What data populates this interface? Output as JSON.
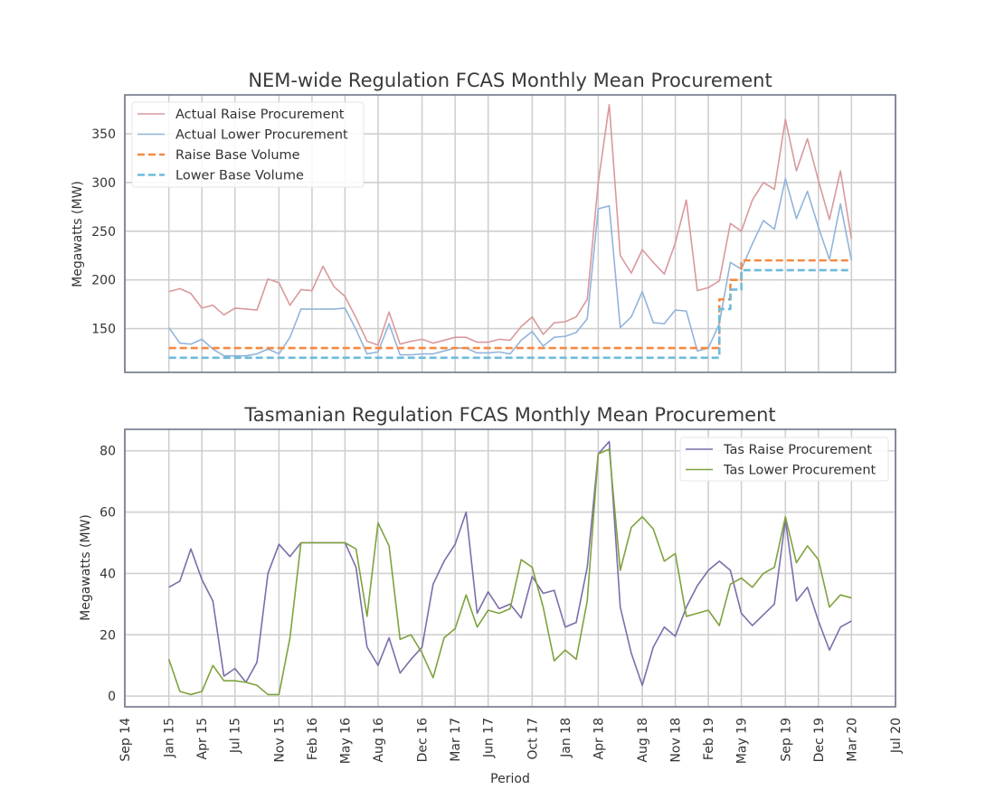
{
  "xlabel": "Period",
  "x_ticks": [
    "Sep 14",
    "Jan 15",
    "Apr 15",
    "Jul 15",
    "Nov 15",
    "Feb 16",
    "May 16",
    "Aug 16",
    "Dec 16",
    "Mar 17",
    "Jun 17",
    "Oct 17",
    "Jan 18",
    "Apr 18",
    "Aug 18",
    "Nov 18",
    "Feb 19",
    "May 19",
    "Sep 19",
    "Dec 19",
    "Mar 20",
    "Jul 20"
  ],
  "colors": {
    "raise": "#d9999c",
    "lower": "#92b4db",
    "raise_base": "#f58a42",
    "lower_base": "#6dbbdc",
    "tas_raise": "#7b6eab",
    "tas_lower": "#7fa23e"
  },
  "chart_data": [
    {
      "type": "line",
      "title": "NEM-wide Regulation FCAS Monthly Mean Procurement",
      "ylabel": "Megawatts (MW)",
      "y_ticks": [
        150,
        200,
        250,
        300,
        350
      ],
      "ylim": [
        105,
        390
      ],
      "xlim": [
        "2014-09",
        "2020-07"
      ],
      "grid": true,
      "legend_position": "top-left",
      "x": [
        "2015-01",
        "2015-02",
        "2015-03",
        "2015-04",
        "2015-05",
        "2015-06",
        "2015-07",
        "2015-08",
        "2015-09",
        "2015-10",
        "2015-11",
        "2015-12",
        "2016-01",
        "2016-02",
        "2016-03",
        "2016-04",
        "2016-05",
        "2016-06",
        "2016-07",
        "2016-08",
        "2016-09",
        "2016-10",
        "2016-11",
        "2016-12",
        "2017-01",
        "2017-02",
        "2017-03",
        "2017-04",
        "2017-05",
        "2017-06",
        "2017-07",
        "2017-08",
        "2017-09",
        "2017-10",
        "2017-11",
        "2017-12",
        "2018-01",
        "2018-02",
        "2018-03",
        "2018-04",
        "2018-05",
        "2018-06",
        "2018-07",
        "2018-08",
        "2018-09",
        "2018-10",
        "2018-11",
        "2018-12",
        "2019-01",
        "2019-02",
        "2019-03",
        "2019-04",
        "2019-05",
        "2019-06",
        "2019-07",
        "2019-08",
        "2019-09",
        "2019-10",
        "2019-11",
        "2019-12",
        "2020-01",
        "2020-02",
        "2020-03"
      ],
      "series": [
        {
          "name": "Actual Raise Procurement",
          "style": "solid",
          "color_key": "raise",
          "values": [
            188,
            191,
            186,
            171,
            174,
            164,
            171,
            170,
            169,
            201,
            197,
            174,
            190,
            189,
            214,
            193,
            183,
            161,
            137,
            133,
            167,
            134,
            137,
            139,
            135,
            138,
            141,
            141,
            136,
            136,
            139,
            138,
            152,
            162,
            144,
            156,
            157,
            162,
            180,
            300,
            380,
            225,
            207,
            231,
            218,
            206,
            238,
            282,
            189,
            192,
            199,
            258,
            250,
            282,
            300,
            293,
            365,
            312,
            345,
            302,
            262,
            312,
            242
          ]
        },
        {
          "name": "Actual Lower Procurement",
          "style": "solid",
          "color_key": "lower",
          "values": [
            151,
            135,
            134,
            139,
            129,
            122,
            122,
            122,
            124,
            129,
            124,
            141,
            170,
            170,
            170,
            170,
            171,
            149,
            124,
            126,
            155,
            123,
            123,
            124,
            124,
            127,
            130,
            130,
            125,
            125,
            126,
            124,
            138,
            147,
            132,
            141,
            142,
            146,
            160,
            273,
            276,
            151,
            162,
            188,
            156,
            155,
            169,
            168,
            127,
            130,
            155,
            218,
            211,
            237,
            261,
            252,
            304,
            263,
            291,
            254,
            221,
            278,
            220
          ]
        },
        {
          "name": "Raise Base Volume",
          "style": "dashed",
          "color_key": "raise_base",
          "step_points": [
            [
              "2015-01",
              130
            ],
            [
              "2019-03",
              130
            ],
            [
              "2019-03",
              180
            ],
            [
              "2019-04",
              180
            ],
            [
              "2019-04",
              200
            ],
            [
              "2019-05",
              200
            ],
            [
              "2019-05",
              220
            ],
            [
              "2020-03",
              220
            ]
          ]
        },
        {
          "name": "Lower Base Volume",
          "style": "dashed",
          "color_key": "lower_base",
          "step_points": [
            [
              "2015-01",
              120
            ],
            [
              "2019-03",
              120
            ],
            [
              "2019-03",
              170
            ],
            [
              "2019-04",
              170
            ],
            [
              "2019-04",
              190
            ],
            [
              "2019-05",
              190
            ],
            [
              "2019-05",
              210
            ],
            [
              "2020-03",
              210
            ]
          ]
        }
      ]
    },
    {
      "type": "line",
      "title": "Tasmanian Regulation FCAS Monthly Mean Procurement",
      "ylabel": "Megawatts (MW)",
      "y_ticks": [
        0,
        20,
        40,
        60,
        80
      ],
      "ylim": [
        -3.5,
        87
      ],
      "xlim": [
        "2014-09",
        "2020-07"
      ],
      "grid": true,
      "legend_position": "top-right",
      "x": [
        "2015-01",
        "2015-02",
        "2015-03",
        "2015-04",
        "2015-05",
        "2015-06",
        "2015-07",
        "2015-08",
        "2015-09",
        "2015-10",
        "2015-11",
        "2015-12",
        "2016-01",
        "2016-02",
        "2016-03",
        "2016-04",
        "2016-05",
        "2016-06",
        "2016-07",
        "2016-08",
        "2016-09",
        "2016-10",
        "2016-11",
        "2016-12",
        "2017-01",
        "2017-02",
        "2017-03",
        "2017-04",
        "2017-05",
        "2017-06",
        "2017-07",
        "2017-08",
        "2017-09",
        "2017-10",
        "2017-11",
        "2017-12",
        "2018-01",
        "2018-02",
        "2018-03",
        "2018-04",
        "2018-05",
        "2018-06",
        "2018-07",
        "2018-08",
        "2018-09",
        "2018-10",
        "2018-11",
        "2018-12",
        "2019-01",
        "2019-02",
        "2019-03",
        "2019-04",
        "2019-05",
        "2019-06",
        "2019-07",
        "2019-08",
        "2019-09",
        "2019-10",
        "2019-11",
        "2019-12",
        "2020-01",
        "2020-02",
        "2020-03"
      ],
      "series": [
        {
          "name": "Tas Raise Procurement",
          "style": "solid",
          "color_key": "tas_raise",
          "values": [
            35.5,
            37.5,
            48,
            38,
            31,
            6.5,
            9,
            4.5,
            11,
            40,
            49.5,
            45.5,
            50,
            50,
            50,
            50,
            50,
            42,
            16,
            10,
            19,
            7.5,
            12,
            16,
            36.5,
            44,
            49.5,
            60,
            27,
            34,
            28.5,
            30,
            25.5,
            39,
            33.5,
            34.5,
            22.5,
            24,
            42,
            79,
            83,
            29,
            14,
            3.5,
            16,
            22.5,
            19.5,
            29,
            36,
            41,
            44,
            41,
            27,
            23,
            26.5,
            30,
            57.5,
            31,
            35.5,
            24.5,
            15,
            22.5,
            24.5
          ]
        },
        {
          "name": "Tas Lower Procurement",
          "style": "solid",
          "color_key": "tas_lower",
          "values": [
            12,
            1.5,
            0.5,
            1.5,
            10,
            5,
            5,
            4.5,
            3.5,
            0.5,
            0.5,
            19,
            50,
            50,
            50,
            50,
            50,
            48,
            26,
            56.5,
            49,
            18.5,
            20,
            14,
            6,
            19,
            22,
            33,
            22.5,
            28,
            27,
            28.5,
            44.5,
            42,
            29,
            11.5,
            15,
            12,
            31,
            79,
            80.5,
            41,
            55,
            58.5,
            54.5,
            44,
            46.5,
            26,
            27,
            28,
            23,
            36.5,
            38.5,
            35.5,
            40,
            42,
            58.5,
            43.5,
            49,
            44.5,
            29,
            33,
            32
          ]
        }
      ]
    }
  ]
}
